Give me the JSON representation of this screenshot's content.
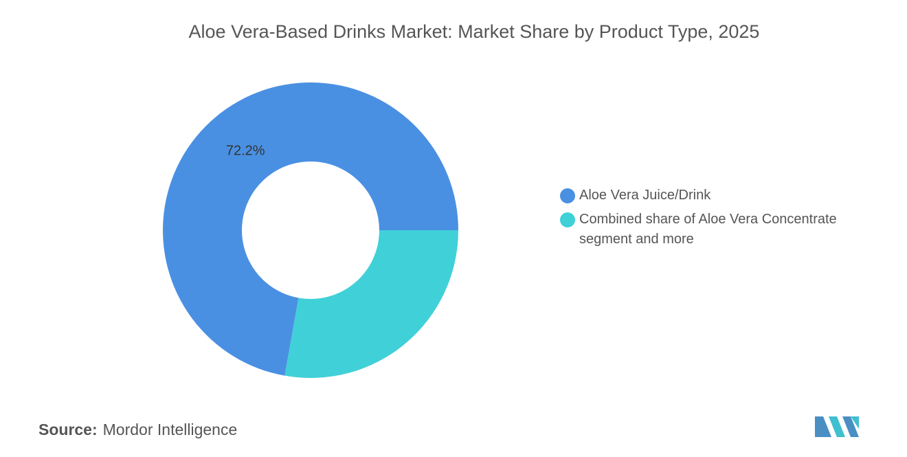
{
  "chart_data": {
    "type": "donut",
    "title": "Aloe Vera-Based Drinks Market: Market Share by Product Type, 2025",
    "categories": [
      "Aloe Vera Juice/Drink",
      "Combined share of Aloe Vera Concentrate segment and more"
    ],
    "values": [
      72.2,
      27.8
    ],
    "value_labels": [
      "72.2%",
      null
    ],
    "colors": [
      "#4a90e2",
      "#40d0d8"
    ]
  },
  "source_label": "Source:",
  "source": "Mordor Intelligence"
}
